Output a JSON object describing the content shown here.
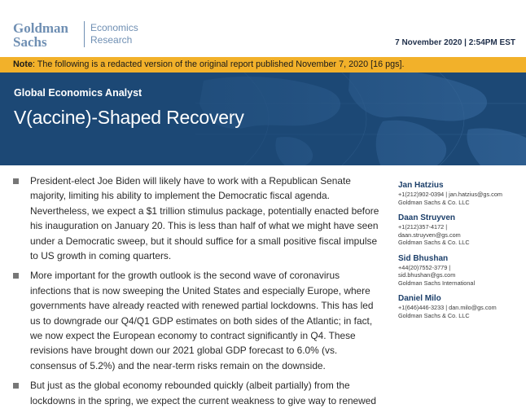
{
  "header": {
    "logo_line1": "Goldman",
    "logo_line2": "Sachs",
    "logo_dept_line1": "Economics",
    "logo_dept_line2": "Research",
    "date": "7 November 2020 | 2:54PM EST"
  },
  "note": {
    "label": "Note",
    "text": ": The following is a redacted version of the original report published November 7, 2020 [16 pgs]."
  },
  "hero": {
    "series": "Global Economics Analyst",
    "title": "V(accine)-Shaped Recovery"
  },
  "bullets": [
    "President-elect Joe Biden will likely have to work with a Republican Senate majority, limiting his ability to implement the Democratic fiscal agenda. Nevertheless, we expect a $1 trillion stimulus package, potentially enacted before his inauguration on January 20. This is less than half of what we might have seen under a Democratic sweep, but it should suffice for a small positive fiscal impulse to US growth in coming quarters.",
    "More important for the growth outlook is the second wave of coronavirus infections that is now sweeping the United States and especially Europe, where governments have already reacted with renewed partial lockdowns. This has led us to downgrade our Q4/Q1 GDP estimates on both sides of the Atlantic; in fact, we now expect the European economy to contract significantly in Q4. These revisions have brought down our 2021 global GDP forecast to 6.0% (vs. consensus of 5.2%) and the near-term risks remain on the downside.",
    "But just as the global economy rebounded quickly (albeit partially) from the lockdowns in the spring, we expect the current weakness to give way to renewed"
  ],
  "authors": [
    {
      "name": "Jan Hatzius",
      "line1": "+1(212)902-0394 | jan.hatzius@gs.com",
      "line2": "Goldman Sachs & Co. LLC",
      "line3": ""
    },
    {
      "name": "Daan Struyven",
      "line1": "+1(212)357-4172 |",
      "line2": "daan.struyven@gs.com",
      "line3": "Goldman Sachs & Co. LLC"
    },
    {
      "name": "Sid Bhushan",
      "line1": "+44(20)7552-3779 |",
      "line2": "sid.bhushan@gs.com",
      "line3": "Goldman Sachs International"
    },
    {
      "name": "Daniel Milo",
      "line1": "+1(646)446-3233 | dan.milo@gs.com",
      "line2": "Goldman Sachs & Co. LLC",
      "line3": ""
    }
  ],
  "colors": {
    "brand": "#6f8fb3",
    "note_bar": "#f2b12a",
    "hero_bg": "#1c4875",
    "author_name": "#1c3f6a"
  }
}
